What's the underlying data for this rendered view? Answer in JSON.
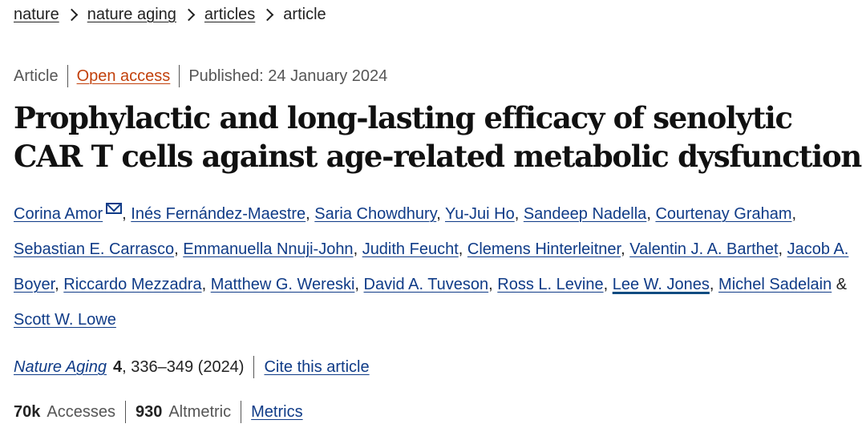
{
  "breadcrumb": {
    "items": [
      "nature",
      "nature aging",
      "articles"
    ],
    "current": "article"
  },
  "meta": {
    "type": "Article",
    "access": "Open access",
    "published": "Published: 24 January 2024"
  },
  "title": {
    "line1": "Prophylactic and long-lasting efficacy of senolytic",
    "line2": "CAR T cells against age-related metabolic dysfunction"
  },
  "authors": [
    "Corina Amor",
    "Inés Fernández-Maestre",
    "Saria Chowdhury",
    "Yu-Jui Ho",
    "Sandeep Nadella",
    "Courtenay Graham",
    "Sebastian E. Carrasco",
    "Emmanuella Nnuji-John",
    "Judith Feucht",
    "Clemens Hinterleitner",
    "Valentin J. A. Barthet",
    "Jacob A. Boyer",
    "Riccardo Mezzadra",
    "Matthew G. Wereski",
    "David A. Tuveson",
    "Ross L. Levine",
    "Lee W. Jones",
    "Michel Sadelain",
    "Scott W. Lowe"
  ],
  "author_connectors": {
    "comma": ", ",
    "amp": " & "
  },
  "journal": {
    "name": "Nature Aging",
    "volume": "4",
    "pages": ", 336–349 (2024)",
    "cite_label": "Cite this article"
  },
  "stats": {
    "accesses_value": "70k",
    "accesses_label": "Accesses",
    "altmetric_value": "930",
    "altmetric_label": "Altmetric",
    "metrics_label": "Metrics"
  },
  "icons": {
    "corresponding": "mail-icon"
  },
  "colors": {
    "link": "#0f3b87",
    "open_access": "#c2410c",
    "text": "#222222"
  }
}
